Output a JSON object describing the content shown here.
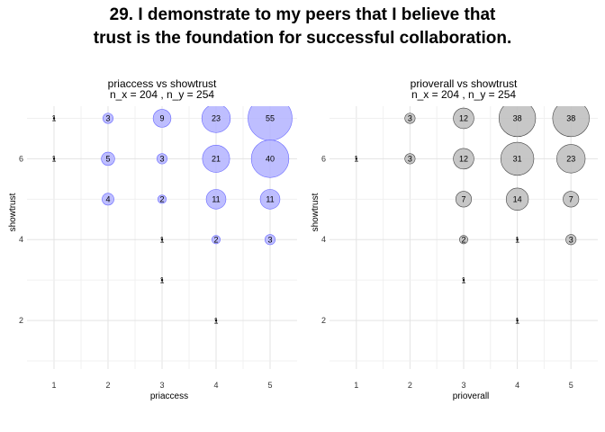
{
  "title_lines": [
    "29. I demonstrate to my peers that I believe that",
    "trust is the foundation for successful collaboration."
  ],
  "chart_data": [
    {
      "type": "scatter",
      "title": "priaccess vs showtrust",
      "subtitle": "n_x = 204 , n_y = 254",
      "xlabel": "priaccess",
      "ylabel": "showtrust",
      "xlim": [
        0.5,
        5.5
      ],
      "ylim": [
        0.8,
        7.3
      ],
      "xticks": [
        1,
        2,
        3,
        4,
        5
      ],
      "yticks": [
        2,
        4,
        6
      ],
      "grid": true,
      "bubble_fill": "#b3b3ff",
      "bubble_stroke": "#6666ff",
      "points": [
        {
          "x": 1,
          "y": 7,
          "n": 1
        },
        {
          "x": 2,
          "y": 7,
          "n": 3
        },
        {
          "x": 3,
          "y": 7,
          "n": 9
        },
        {
          "x": 4,
          "y": 7,
          "n": 23
        },
        {
          "x": 5,
          "y": 7,
          "n": 55
        },
        {
          "x": 1,
          "y": 6,
          "n": 1
        },
        {
          "x": 2,
          "y": 6,
          "n": 5
        },
        {
          "x": 3,
          "y": 6,
          "n": 3
        },
        {
          "x": 4,
          "y": 6,
          "n": 21
        },
        {
          "x": 5,
          "y": 6,
          "n": 40
        },
        {
          "x": 2,
          "y": 5,
          "n": 4
        },
        {
          "x": 3,
          "y": 5,
          "n": 2
        },
        {
          "x": 4,
          "y": 5,
          "n": 11
        },
        {
          "x": 5,
          "y": 5,
          "n": 11
        },
        {
          "x": 3,
          "y": 4,
          "n": 1
        },
        {
          "x": 4,
          "y": 4,
          "n": 2
        },
        {
          "x": 5,
          "y": 4,
          "n": 3
        },
        {
          "x": 3,
          "y": 3,
          "n": 1
        },
        {
          "x": 4,
          "y": 2,
          "n": 1
        }
      ]
    },
    {
      "type": "scatter",
      "title": "prioverall vs showtrust",
      "subtitle": "n_x = 204 , n_y = 254",
      "xlabel": "prioverall",
      "ylabel": "showtrust",
      "xlim": [
        0.5,
        5.5
      ],
      "ylim": [
        0.8,
        7.3
      ],
      "xticks": [
        1,
        2,
        3,
        4,
        5
      ],
      "yticks": [
        2,
        4,
        6
      ],
      "grid": true,
      "bubble_fill": "#bdbdbd",
      "bubble_stroke": "#444444",
      "points": [
        {
          "x": 2,
          "y": 7,
          "n": 3
        },
        {
          "x": 3,
          "y": 7,
          "n": 12
        },
        {
          "x": 4,
          "y": 7,
          "n": 38
        },
        {
          "x": 5,
          "y": 7,
          "n": 38
        },
        {
          "x": 1,
          "y": 6,
          "n": 1
        },
        {
          "x": 2,
          "y": 6,
          "n": 3
        },
        {
          "x": 3,
          "y": 6,
          "n": 12
        },
        {
          "x": 4,
          "y": 6,
          "n": 31
        },
        {
          "x": 5,
          "y": 6,
          "n": 23
        },
        {
          "x": 3,
          "y": 5,
          "n": 7
        },
        {
          "x": 4,
          "y": 5,
          "n": 14
        },
        {
          "x": 5,
          "y": 5,
          "n": 7
        },
        {
          "x": 3,
          "y": 4,
          "n": 2
        },
        {
          "x": 4,
          "y": 4,
          "n": 1
        },
        {
          "x": 5,
          "y": 4,
          "n": 3
        },
        {
          "x": 3,
          "y": 3,
          "n": 1
        },
        {
          "x": 4,
          "y": 2,
          "n": 1
        }
      ]
    }
  ]
}
